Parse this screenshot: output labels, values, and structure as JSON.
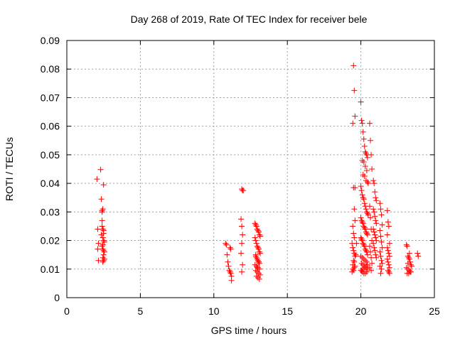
{
  "chart_data": {
    "type": "scatter",
    "title": "Day 268 of 2019, Rate Of TEC Index for receiver bele",
    "xlabel": "GPS time / hours",
    "ylabel": "ROTI / TECUs",
    "xlim": [
      0,
      25
    ],
    "ylim": [
      0,
      0.09
    ],
    "xticks": [
      0,
      5,
      10,
      15,
      20,
      25
    ],
    "xtick_labels": [
      "0",
      "5",
      "10",
      "15",
      "20",
      "25"
    ],
    "yticks": [
      0,
      0.01,
      0.02,
      0.03,
      0.04,
      0.05,
      0.06,
      0.07,
      0.08,
      0.09
    ],
    "ytick_labels": [
      "0",
      "0.01",
      "0.02",
      "0.03",
      "0.04",
      "0.05",
      "0.06",
      "0.07",
      "0.08",
      "0.09"
    ],
    "grid": true,
    "marker": "plus",
    "color": "#ff0000",
    "series": [
      {
        "x": [
          2.05,
          2.1,
          2.1,
          2.15,
          2.15,
          2.3,
          2.35,
          2.4,
          2.4,
          2.45,
          2.5,
          2.4,
          2.45,
          2.5,
          2.35,
          2.45,
          2.5,
          2.55,
          2.4,
          2.45,
          2.5,
          2.55,
          2.5,
          2.45,
          2.55,
          2.5,
          2.45,
          2.4,
          2.5,
          2.45
        ],
        "y": [
          0.0415,
          0.024,
          0.017,
          0.013,
          0.019,
          0.0448,
          0.0345,
          0.03,
          0.0305,
          0.031,
          0.0395,
          0.025,
          0.024,
          0.0235,
          0.022,
          0.021,
          0.02,
          0.0195,
          0.018,
          0.017,
          0.0165,
          0.016,
          0.015,
          0.014,
          0.0135,
          0.013,
          0.0125,
          0.027,
          0.0225,
          0.0185
        ]
      },
      {
        "x": [
          10.8,
          10.85,
          10.9,
          10.95,
          11.0,
          11.05,
          11.1,
          11.15,
          11.2,
          11.1,
          11.15,
          11.2,
          11.9,
          11.95,
          12.0,
          11.85,
          11.9,
          11.95,
          11.9,
          11.85,
          11.95,
          11.9
        ],
        "y": [
          0.019,
          0.0185,
          0.015,
          0.0125,
          0.011,
          0.0095,
          0.009,
          0.0085,
          0.0075,
          0.0175,
          0.017,
          0.006,
          0.038,
          0.0375,
          0.0375,
          0.0275,
          0.025,
          0.022,
          0.019,
          0.0155,
          0.0115,
          0.009
        ]
      },
      {
        "x": [
          12.8,
          12.85,
          12.9,
          12.95,
          13.0,
          13.05,
          13.1,
          13.15,
          12.8,
          12.85,
          12.9,
          12.95,
          13.0,
          13.05,
          13.1,
          13.15,
          12.85,
          12.9,
          12.95,
          13.0,
          13.05,
          13.1,
          12.8,
          12.9,
          13.0,
          13.1,
          12.85,
          12.95,
          13.05,
          13.15,
          12.9,
          13.0,
          13.1,
          12.95,
          13.05,
          12.85
        ],
        "y": [
          0.026,
          0.0255,
          0.025,
          0.024,
          0.0235,
          0.023,
          0.022,
          0.0215,
          0.021,
          0.02,
          0.019,
          0.018,
          0.0175,
          0.017,
          0.016,
          0.0155,
          0.015,
          0.014,
          0.0135,
          0.013,
          0.0125,
          0.012,
          0.0115,
          0.011,
          0.0105,
          0.01,
          0.0095,
          0.009,
          0.0085,
          0.008,
          0.0075,
          0.007,
          0.0065,
          0.0105,
          0.0125,
          0.0145
        ]
      },
      {
        "x": [
          19.4,
          19.45,
          19.5,
          19.55,
          19.6,
          19.65,
          19.7,
          19.5,
          19.55,
          19.6,
          19.45,
          19.5,
          19.55,
          19.6,
          19.45,
          19.5,
          19.55,
          19.4,
          19.45,
          19.5,
          19.55,
          19.6,
          19.5,
          19.55,
          19.45,
          19.6
        ],
        "y": [
          0.009,
          0.01,
          0.0095,
          0.0125,
          0.0145,
          0.015,
          0.019,
          0.0812,
          0.0725,
          0.0635,
          0.061,
          0.0385,
          0.031,
          0.027,
          0.025,
          0.0225,
          0.021,
          0.019,
          0.0175,
          0.0165,
          0.0155,
          0.011,
          0.013,
          0.0105,
          0.0115,
          0.0385
        ]
      },
      {
        "x": [
          20.0,
          20.05,
          20.1,
          20.15,
          20.2,
          20.25,
          20.3,
          20.35,
          20.4,
          20.45,
          20.1,
          20.2,
          20.3,
          20.4,
          20.15,
          20.25,
          20.35,
          20.45,
          20.5,
          20.0,
          20.05,
          20.1,
          20.15,
          20.2,
          20.25,
          20.3,
          20.35,
          20.4,
          20.45,
          20.5,
          20.0,
          20.05,
          20.1,
          20.15,
          20.2,
          20.25,
          20.3,
          20.35,
          20.4,
          20.45,
          20.0,
          20.05,
          20.1,
          20.15,
          20.2,
          20.25,
          20.3,
          20.35,
          20.4,
          20.45,
          20.0,
          20.1,
          20.2,
          20.3,
          20.4,
          20.05,
          20.15,
          20.25,
          20.35,
          20.45,
          20.0,
          20.1,
          20.2,
          20.3,
          20.4,
          20.05,
          20.15,
          20.25,
          20.35,
          20.45,
          20.6,
          20.65,
          20.7,
          20.75,
          20.6,
          20.65,
          20.7,
          20.75,
          20.6,
          20.65,
          20.7,
          20.75,
          20.6,
          20.7
        ],
        "y": [
          0.0685,
          0.062,
          0.061,
          0.058,
          0.0555,
          0.053,
          0.051,
          0.0505,
          0.05,
          0.049,
          0.048,
          0.0475,
          0.046,
          0.0445,
          0.043,
          0.0425,
          0.041,
          0.0405,
          0.04,
          0.039,
          0.0375,
          0.036,
          0.035,
          0.0345,
          0.033,
          0.032,
          0.031,
          0.03,
          0.0295,
          0.029,
          0.028,
          0.027,
          0.0265,
          0.026,
          0.025,
          0.0245,
          0.024,
          0.023,
          0.0225,
          0.022,
          0.021,
          0.0205,
          0.02,
          0.019,
          0.0185,
          0.018,
          0.017,
          0.0165,
          0.016,
          0.015,
          0.0145,
          0.014,
          0.0135,
          0.013,
          0.0125,
          0.012,
          0.0115,
          0.011,
          0.0105,
          0.01,
          0.0095,
          0.009,
          0.0085,
          0.0085,
          0.009,
          0.0095,
          0.01,
          0.0105,
          0.011,
          0.0115,
          0.061,
          0.055,
          0.05,
          0.045,
          0.032,
          0.028,
          0.024,
          0.02,
          0.018,
          0.016,
          0.014,
          0.012,
          0.0105,
          0.0095
        ]
      },
      {
        "x": [
          20.85,
          20.9,
          20.95,
          21.0,
          21.05,
          20.85,
          20.9,
          20.95,
          21.0,
          21.05,
          20.85,
          20.9,
          20.95,
          21.0,
          21.05,
          20.85,
          20.9,
          20.95,
          21.0,
          21.05,
          21.3,
          21.35,
          21.4,
          21.45,
          21.3,
          21.35,
          21.4,
          21.45,
          21.3,
          21.35,
          21.4,
          21.45,
          21.3,
          21.4,
          21.35
        ],
        "y": [
          0.041,
          0.04,
          0.037,
          0.035,
          0.034,
          0.031,
          0.03,
          0.0285,
          0.027,
          0.026,
          0.024,
          0.023,
          0.022,
          0.021,
          0.02,
          0.019,
          0.0175,
          0.0165,
          0.015,
          0.014,
          0.033,
          0.031,
          0.029,
          0.0255,
          0.0235,
          0.0215,
          0.0195,
          0.0175,
          0.016,
          0.0145,
          0.013,
          0.012,
          0.011,
          0.01,
          0.0085
        ]
      },
      {
        "x": [
          21.8,
          21.85,
          21.9,
          21.95,
          21.8,
          21.85,
          21.9,
          21.95,
          21.8,
          21.85,
          21.9,
          21.95,
          21.85,
          21.9,
          21.95,
          21.8
        ],
        "y": [
          0.0305,
          0.0265,
          0.025,
          0.019,
          0.0175,
          0.0165,
          0.0155,
          0.0145,
          0.0135,
          0.0125,
          0.0115,
          0.0105,
          0.0095,
          0.009,
          0.0085,
          0.022
        ]
      },
      {
        "x": [
          23.1,
          23.15,
          23.2,
          23.25,
          23.3,
          23.35,
          23.4,
          23.45,
          23.1,
          23.2,
          23.3,
          23.4,
          23.15,
          23.25,
          23.35,
          23.2,
          23.3,
          23.85,
          23.9
        ],
        "y": [
          0.0185,
          0.018,
          0.0145,
          0.014,
          0.0135,
          0.0125,
          0.0115,
          0.011,
          0.0105,
          0.01,
          0.0095,
          0.009,
          0.0085,
          0.0085,
          0.009,
          0.012,
          0.0155,
          0.0155,
          0.0145
        ]
      }
    ]
  }
}
